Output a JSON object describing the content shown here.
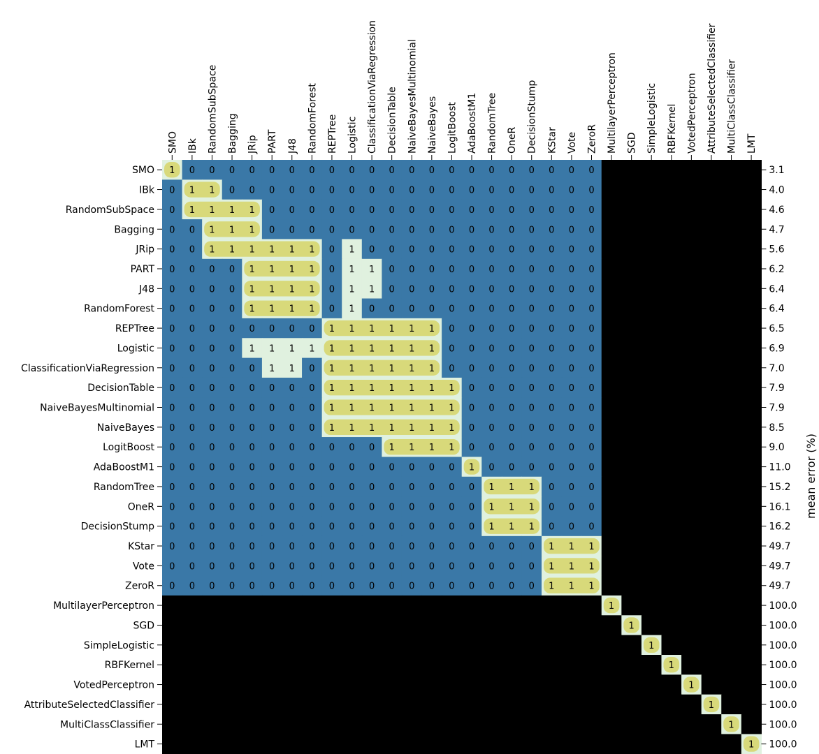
{
  "chart_data": {
    "type": "heatmap",
    "title": "",
    "ylabel": "mean error (%)",
    "colors": {
      "zero": "#3a78a7",
      "one": "#e0f1df",
      "neg": "#000000",
      "highlight": "#d8d97a",
      "highlight_strong": "#d3c85f"
    },
    "labels": [
      "SMO",
      "IBk",
      "RandomSubSpace",
      "Bagging",
      "JRip",
      "PART",
      "J48",
      "RandomForest",
      "REPTree",
      "Logistic",
      "ClassificationViaRegression",
      "DecisionTable",
      "NaiveBayesMultinomial",
      "NaiveBayes",
      "LogitBoost",
      "AdaBoostM1",
      "RandomTree",
      "OneR",
      "DecisionStump",
      "KStar",
      "Vote",
      "ZeroR",
      "MultilayerPerceptron",
      "SGD",
      "SimpleLogistic",
      "RBFKernel",
      "VotedPerceptron",
      "AttributeSelectedClassifier",
      "MultiClassClassifier",
      "LMT"
    ],
    "mean_error": [
      "3.1",
      "4.0",
      "4.6",
      "4.7",
      "5.6",
      "6.2",
      "6.4",
      "6.4",
      "6.5",
      "6.9",
      "7.0",
      "7.9",
      "7.9",
      "8.5",
      "9.0",
      "11.0",
      "15.2",
      "16.1",
      "16.2",
      "49.7",
      "49.7",
      "49.7",
      "100.0",
      "100.0",
      "100.0",
      "100.0",
      "100.0",
      "100.0",
      "100.0",
      "100.0"
    ],
    "ones": [
      [
        0
      ],
      [
        1,
        2
      ],
      [
        1,
        2,
        3,
        4
      ],
      [
        2,
        3,
        4
      ],
      [
        2,
        3,
        4,
        5,
        6,
        7,
        9
      ],
      [
        4,
        5,
        6,
        7,
        9,
        10
      ],
      [
        4,
        5,
        6,
        7,
        9,
        10
      ],
      [
        4,
        5,
        6,
        7,
        9
      ],
      [
        8,
        9,
        10,
        11,
        12,
        13
      ],
      [
        4,
        5,
        6,
        7,
        8,
        9,
        10,
        11,
        12,
        13
      ],
      [
        5,
        6,
        8,
        9,
        10,
        11,
        12,
        13
      ],
      [
        8,
        9,
        10,
        11,
        12,
        13,
        14
      ],
      [
        8,
        9,
        10,
        11,
        12,
        13,
        14
      ],
      [
        8,
        9,
        10,
        11,
        12,
        13,
        14
      ],
      [
        11,
        12,
        13,
        14
      ],
      [
        15
      ],
      [
        16,
        17,
        18
      ],
      [
        16,
        17,
        18
      ],
      [
        16,
        17,
        18
      ],
      [
        19,
        20,
        21
      ],
      [
        19,
        20,
        21
      ],
      [
        19,
        20,
        21
      ],
      [
        22
      ],
      [
        23
      ],
      [
        24
      ],
      [
        25
      ],
      [
        26
      ],
      [
        27
      ],
      [
        28
      ],
      [
        29
      ]
    ],
    "highlight_runs": [
      [
        [
          0,
          0
        ]
      ],
      [
        [
          1,
          2
        ]
      ],
      [
        [
          1,
          4
        ]
      ],
      [
        [
          2,
          4
        ]
      ],
      [
        [
          2,
          7
        ]
      ],
      [
        [
          4,
          7
        ]
      ],
      [
        [
          4,
          7
        ]
      ],
      [
        [
          4,
          7
        ]
      ],
      [
        [
          8,
          13
        ]
      ],
      [
        [
          8,
          13
        ]
      ],
      [
        [
          8,
          13
        ]
      ],
      [
        [
          8,
          14
        ]
      ],
      [
        [
          8,
          14
        ]
      ],
      [
        [
          8,
          14
        ]
      ],
      [
        [
          11,
          14
        ]
      ],
      [
        [
          15,
          15
        ]
      ],
      [
        [
          16,
          18
        ]
      ],
      [
        [
          16,
          18
        ]
      ],
      [
        [
          16,
          18
        ]
      ],
      [
        [
          19,
          21
        ]
      ],
      [
        [
          19,
          21
        ]
      ],
      [
        [
          19,
          21
        ]
      ],
      [
        [
          22,
          22
        ]
      ],
      [
        [
          23,
          23
        ]
      ],
      [
        [
          24,
          24
        ]
      ],
      [
        [
          25,
          25
        ]
      ],
      [
        [
          26,
          26
        ]
      ],
      [
        [
          27,
          27
        ]
      ],
      [
        [
          28,
          28
        ]
      ],
      [
        [
          29,
          29
        ]
      ]
    ],
    "grid": false
  }
}
